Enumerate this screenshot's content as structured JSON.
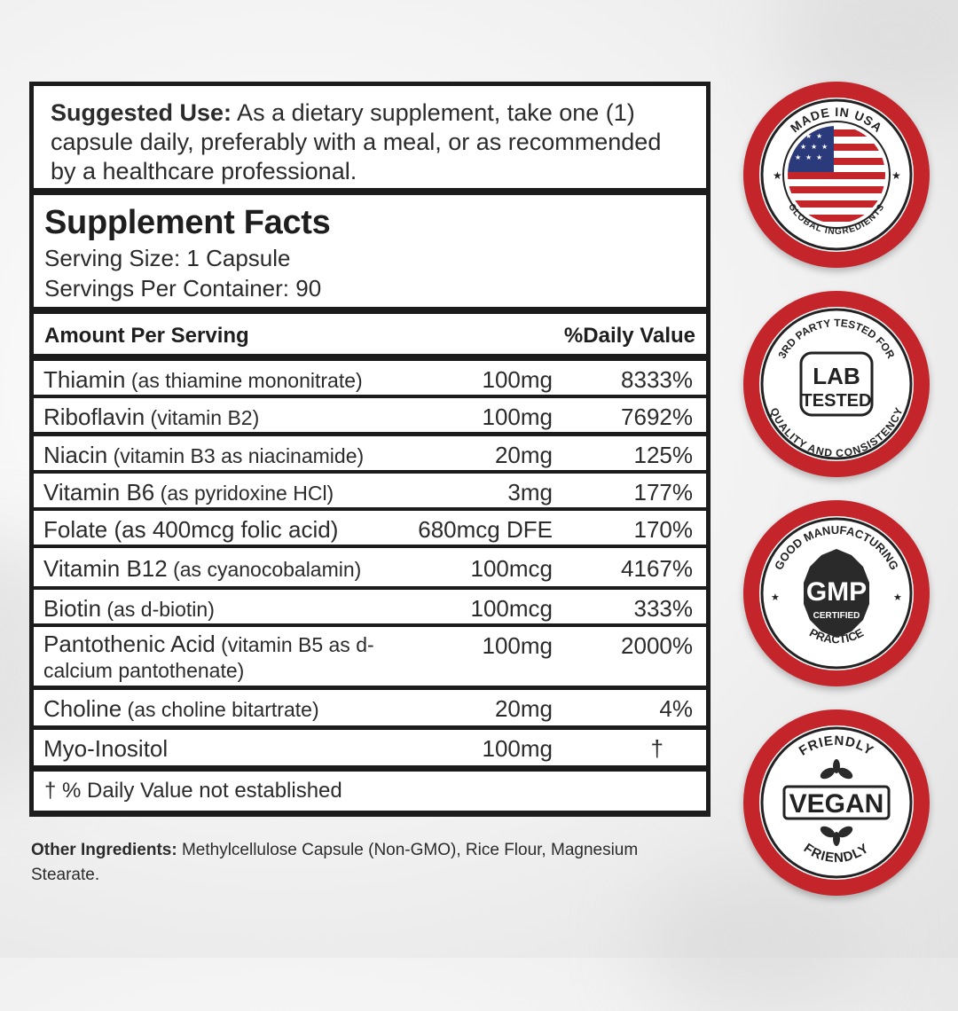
{
  "suggested_use": {
    "label": "Suggested Use:",
    "text": " As a dietary supplement, take one (1) capsule daily, preferably with a meal, or as recommended by a healthcare professional."
  },
  "facts": {
    "title": "Supplement Facts",
    "serving_size": "Serving Size: 1 Capsule",
    "servings_per_container": "Servings Per Container: 90",
    "header_left": "Amount Per Serving",
    "header_right": "%Daily Value",
    "rows": [
      {
        "name": "Thiamin",
        "sub": " (as thiamine mononitrate)",
        "amount": "100mg",
        "dv": "8333%"
      },
      {
        "name": "Riboflavin",
        "sub": " (vitamin B2)",
        "amount": "100mg",
        "dv": "7692%"
      },
      {
        "name": "Niacin",
        "sub": " (vitamin B3 as niacinamide)",
        "amount": "20mg",
        "dv": "125%"
      },
      {
        "name": "Vitamin B6",
        "sub": " (as pyridoxine HCl)",
        "amount": "3mg",
        "dv": "177%"
      },
      {
        "name": "Folate",
        "sub": " (as 400mcg folic acid)",
        "amount": "680mcg DFE",
        "dv": "170%"
      },
      {
        "name": "Vitamin B12",
        "sub": " (as cyanocobalamin)",
        "amount": "100mcg",
        "dv": "4167%"
      },
      {
        "name": "Biotin",
        "sub": " (as d-biotin)",
        "amount": "100mcg",
        "dv": "333%"
      },
      {
        "name": "Pantothenic Acid",
        "sub": " (vitamin B5 as d-calcium pantothenate)",
        "amount": "100mg",
        "dv": "2000%"
      },
      {
        "name": "Choline",
        "sub": " (as choline bitartrate)",
        "amount": "20mg",
        "dv": "4%"
      },
      {
        "name": "Myo-Inositol",
        "sub": "",
        "amount": "100mg",
        "dv": "†"
      }
    ],
    "footnote": "† % Daily Value not established"
  },
  "other_ingredients": {
    "label": "Other Ingredients:",
    "text": " Methylcellulose Capsule (Non-GMO), Rice Flour, Magnesium Stearate."
  },
  "badges": [
    {
      "name": "made-in-usa",
      "top_text": "MADE IN USA",
      "bottom_text": "GLOBAL INGREDIENTS"
    },
    {
      "name": "lab-tested",
      "top_text": "3RD PARTY TESTED FOR",
      "bottom_text": "QUALITY AND CONSISTENCY",
      "center_line1": "LAB",
      "center_line2": "TESTED"
    },
    {
      "name": "gmp",
      "top_text": "GOOD MANUFACTURING",
      "bottom_text": "PRACTICE",
      "center": "GMP",
      "center_sub": "CERTIFIED"
    },
    {
      "name": "vegan",
      "top_text": "FRIENDLY",
      "bottom_text": "FRIENDLY",
      "center": "VEGAN"
    }
  ],
  "colors": {
    "badge_red": "#c3252b",
    "panel_border": "#1c1c1c"
  }
}
